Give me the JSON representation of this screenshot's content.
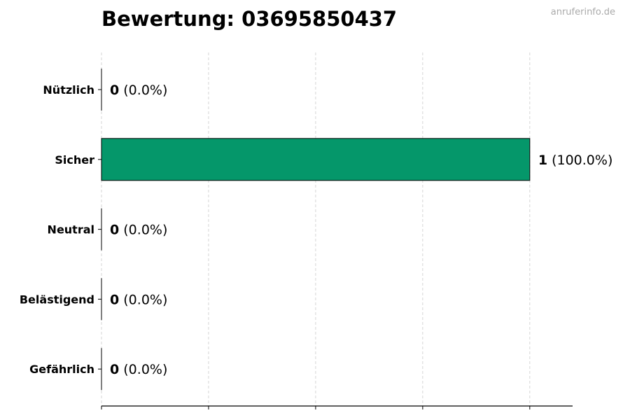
{
  "chart_data": {
    "type": "bar",
    "orientation": "horizontal",
    "title": "Bewertung: 03695850437",
    "categories": [
      "Nützlich",
      "Sicher",
      "Neutral",
      "Belästigend",
      "Gefährlich"
    ],
    "values": [
      0,
      1,
      0,
      0,
      0
    ],
    "percent_labels": [
      "(0.0%)",
      "(100.0%)",
      "(0.0%)",
      "(0.0%)",
      "(0.0%)"
    ],
    "xlim": [
      0,
      1.1
    ],
    "xticks": [
      0,
      0.25,
      0.5,
      0.75,
      1
    ],
    "xtick_labels_shown": false,
    "grid": "x, dashed",
    "bar_color": "#05976a",
    "xlabel": "",
    "ylabel": ""
  },
  "watermark": "anruferinfo.de"
}
